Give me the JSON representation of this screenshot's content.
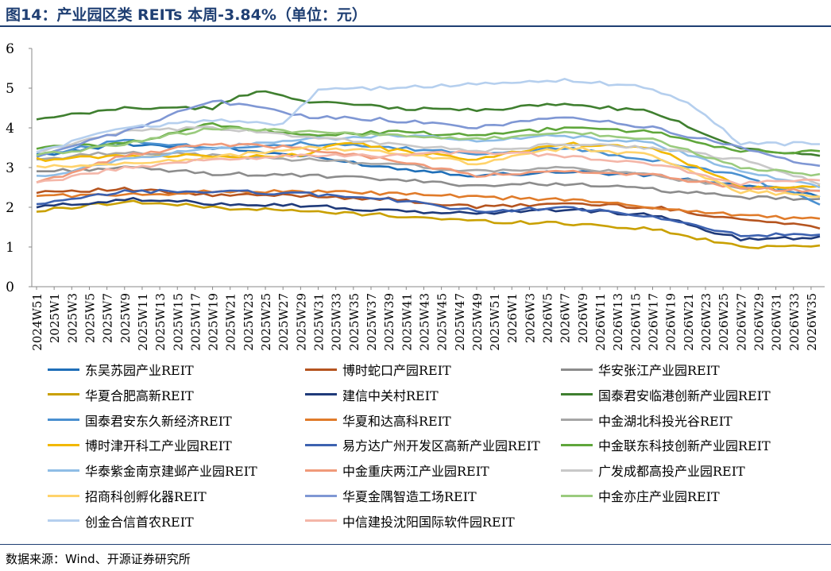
{
  "title": "图14：产业园区类 REITs 本周-3.84%（单位：元）",
  "source": "数据来源：Wind、开源证券研究所",
  "chart_data": {
    "type": "line",
    "ylim": [
      0,
      6
    ],
    "yticks": [
      "0",
      "1",
      "2",
      "3",
      "4",
      "5",
      "6"
    ],
    "x": [
      "2024W51",
      "2024W52",
      "2025W1",
      "2025W2",
      "2025W3",
      "2025W4",
      "2025W5",
      "2025W6",
      "2025W7",
      "2025W8",
      "2025W9",
      "2025W10",
      "2025W11",
      "2025W12",
      "2025W13",
      "2025W14",
      "2025W15",
      "2025W16",
      "2025W17",
      "2025W18",
      "2025W19",
      "2025W20",
      "2025W21",
      "2025W22",
      "2025W23",
      "2025W24",
      "2025W25",
      "2025W26",
      "2025W27",
      "2025W28",
      "2025W29",
      "2025W30",
      "2025W31",
      "2025W32",
      "2025W33",
      "2025W34",
      "2025W35",
      "2025W36",
      "2025W37",
      "2025W38",
      "2025W39",
      "2025W40",
      "2025W41",
      "2025W42",
      "2025W43",
      "2025W44",
      "2025W45",
      "2025W46",
      "2025W47",
      "2025W48",
      "2025W49",
      "2025W50",
      "2025W51",
      "2025W52",
      "2026W1",
      "2026W2",
      "2026W3",
      "2026W4",
      "2026W5",
      "2026W6",
      "2026W7",
      "2026W8",
      "2026W9",
      "2026W10",
      "2026W11",
      "2026W12",
      "2026W13",
      "2026W14",
      "2026W15",
      "2026W16",
      "2026W17",
      "2026W18",
      "2026W19",
      "2026W20",
      "2026W21",
      "2026W22",
      "2026W23",
      "2026W24",
      "2026W25",
      "2026W26",
      "2026W27",
      "2026W28",
      "2026W29",
      "2026W30",
      "2026W31",
      "2026W32",
      "2026W33",
      "2026W34",
      "2026W35",
      "2026W36"
    ],
    "xtick_labels": [
      "2024W51",
      "2025W1",
      "2025W3",
      "2025W5",
      "2025W7",
      "2025W9",
      "2025W11",
      "2025W13",
      "2025W15",
      "2025W17",
      "2025W19",
      "2025W21",
      "2025W23",
      "2025W25",
      "2025W27",
      "2025W29",
      "2025W31",
      "2025W33",
      "2025W35",
      "2025W37",
      "2025W39",
      "2025W41",
      "2025W43",
      "2025W45",
      "2025W47",
      "2025W49",
      "2025W51",
      "2026W1",
      "2026W3",
      "2026W5",
      "2026W7",
      "2026W9",
      "2026W11",
      "2026W13",
      "2026W15",
      "2026W17",
      "2026W19",
      "2026W21",
      "2026W23",
      "2026W25",
      "2026W27",
      "2026W29",
      "2026W31",
      "2026W33",
      "2026W35"
    ],
    "series": [
      {
        "name": "东吴苏园产业REIT",
        "color": "#1f6fb8",
        "anchors": [
          [
            0,
            3.3
          ],
          [
            10,
            3.6
          ],
          [
            20,
            3.5
          ],
          [
            30,
            3.3
          ],
          [
            40,
            3.0
          ],
          [
            50,
            2.8
          ],
          [
            60,
            2.9
          ],
          [
            70,
            2.8
          ],
          [
            80,
            2.55
          ],
          [
            89,
            2.3
          ]
        ]
      },
      {
        "name": "博时蛇口产园REIT",
        "color": "#b5541f",
        "anchors": [
          [
            0,
            2.4
          ],
          [
            10,
            2.45
          ],
          [
            20,
            2.3
          ],
          [
            30,
            2.3
          ],
          [
            40,
            2.2
          ],
          [
            50,
            2.0
          ],
          [
            60,
            2.1
          ],
          [
            70,
            2.0
          ],
          [
            80,
            1.7
          ],
          [
            89,
            1.5
          ]
        ]
      },
      {
        "name": "华安张江产业园REIT",
        "color": "#8c8c8c",
        "anchors": [
          [
            0,
            2.9
          ],
          [
            10,
            3.0
          ],
          [
            20,
            2.85
          ],
          [
            30,
            2.8
          ],
          [
            40,
            2.7
          ],
          [
            50,
            2.55
          ],
          [
            60,
            2.6
          ],
          [
            70,
            2.45
          ],
          [
            80,
            2.25
          ],
          [
            89,
            2.2
          ]
        ]
      },
      {
        "name": "华夏合肥高新REIT",
        "color": "#c9a000",
        "anchors": [
          [
            0,
            1.9
          ],
          [
            10,
            2.15
          ],
          [
            20,
            2.0
          ],
          [
            30,
            1.9
          ],
          [
            40,
            1.8
          ],
          [
            50,
            1.65
          ],
          [
            60,
            1.6
          ],
          [
            70,
            1.45
          ],
          [
            80,
            1.0
          ],
          [
            89,
            1.05
          ]
        ]
      },
      {
        "name": "建信中关村REIT",
        "color": "#1f3a7a",
        "anchors": [
          [
            0,
            2.0
          ],
          [
            10,
            2.2
          ],
          [
            20,
            2.1
          ],
          [
            30,
            2.05
          ],
          [
            40,
            1.9
          ],
          [
            50,
            1.85
          ],
          [
            60,
            1.95
          ],
          [
            70,
            1.8
          ],
          [
            80,
            1.2
          ],
          [
            89,
            1.25
          ]
        ]
      },
      {
        "name": "国泰君安临港创新产业园REIT",
        "color": "#3f7f2f",
        "anchors": [
          [
            0,
            4.2
          ],
          [
            10,
            4.5
          ],
          [
            20,
            4.5
          ],
          [
            25,
            4.95
          ],
          [
            30,
            4.7
          ],
          [
            40,
            4.5
          ],
          [
            50,
            4.45
          ],
          [
            60,
            4.6
          ],
          [
            70,
            4.4
          ],
          [
            80,
            3.5
          ],
          [
            89,
            3.3
          ]
        ]
      },
      {
        "name": "国泰君安东久新经济REIT",
        "color": "#4a90d0",
        "anchors": [
          [
            0,
            3.3
          ],
          [
            10,
            3.7
          ],
          [
            20,
            3.5
          ],
          [
            30,
            3.6
          ],
          [
            40,
            3.5
          ],
          [
            50,
            3.35
          ],
          [
            60,
            3.5
          ],
          [
            70,
            3.2
          ],
          [
            80,
            2.8
          ],
          [
            89,
            2.1
          ]
        ]
      },
      {
        "name": "华夏和达高科REIT",
        "color": "#e07b2a",
        "anchors": [
          [
            0,
            2.3
          ],
          [
            10,
            2.3
          ],
          [
            20,
            2.4
          ],
          [
            30,
            2.4
          ],
          [
            40,
            2.35
          ],
          [
            50,
            2.25
          ],
          [
            60,
            2.2
          ],
          [
            70,
            2.0
          ],
          [
            80,
            1.8
          ],
          [
            89,
            1.7
          ]
        ]
      },
      {
        "name": "中金湖北科投光谷REIT",
        "color": "#a6a6a6",
        "anchors": [
          [
            0,
            3.2
          ],
          [
            10,
            3.4
          ],
          [
            20,
            3.3
          ],
          [
            30,
            3.2
          ],
          [
            40,
            3.1
          ],
          [
            50,
            2.9
          ],
          [
            60,
            3.0
          ],
          [
            70,
            2.8
          ],
          [
            80,
            2.5
          ],
          [
            89,
            2.45
          ]
        ]
      },
      {
        "name": "博时津开科工产业园REIT",
        "color": "#f2b800",
        "anchors": [
          [
            0,
            3.2
          ],
          [
            10,
            3.3
          ],
          [
            20,
            3.3
          ],
          [
            30,
            3.3
          ],
          [
            35,
            3.65
          ],
          [
            40,
            3.45
          ],
          [
            50,
            3.2
          ],
          [
            60,
            3.6
          ],
          [
            70,
            3.5
          ],
          [
            80,
            2.5
          ],
          [
            89,
            2.5
          ]
        ]
      },
      {
        "name": "易方达广州开发区高新产业园REIT",
        "color": "#3d62b0",
        "anchors": [
          [
            0,
            2.05
          ],
          [
            10,
            2.4
          ],
          [
            20,
            2.4
          ],
          [
            30,
            2.35
          ],
          [
            40,
            2.2
          ],
          [
            50,
            1.9
          ],
          [
            60,
            2.0
          ],
          [
            70,
            1.75
          ],
          [
            80,
            1.3
          ],
          [
            89,
            1.3
          ]
        ]
      },
      {
        "name": "中金联东科技创新产业园REIT",
        "color": "#5fa63b",
        "anchors": [
          [
            0,
            3.5
          ],
          [
            10,
            3.6
          ],
          [
            20,
            4.1
          ],
          [
            30,
            3.8
          ],
          [
            40,
            3.9
          ],
          [
            50,
            3.8
          ],
          [
            60,
            4.0
          ],
          [
            70,
            3.9
          ],
          [
            80,
            3.4
          ],
          [
            89,
            3.4
          ]
        ]
      },
      {
        "name": "华泰紫金南京建邺产业园REIT",
        "color": "#8fbde6",
        "anchors": [
          [
            0,
            2.75
          ],
          [
            10,
            3.2
          ],
          [
            20,
            3.5
          ],
          [
            30,
            3.7
          ],
          [
            40,
            3.8
          ],
          [
            50,
            3.7
          ],
          [
            60,
            3.8
          ],
          [
            70,
            3.6
          ],
          [
            80,
            2.9
          ],
          [
            89,
            2.5
          ]
        ]
      },
      {
        "name": "中金重庆两江产业园REIT",
        "color": "#f09a7a",
        "anchors": [
          [
            0,
            2.6
          ],
          [
            10,
            3.3
          ],
          [
            20,
            3.6
          ],
          [
            30,
            3.5
          ],
          [
            40,
            3.2
          ],
          [
            50,
            2.8
          ],
          [
            60,
            2.9
          ],
          [
            70,
            2.8
          ],
          [
            80,
            2.5
          ],
          [
            89,
            2.4
          ]
        ]
      },
      {
        "name": "广发成都高投产业园REIT",
        "color": "#c8c8c8",
        "anchors": [
          [
            0,
            3.4
          ],
          [
            10,
            3.9
          ],
          [
            20,
            4.0
          ],
          [
            30,
            3.8
          ],
          [
            40,
            3.6
          ],
          [
            50,
            3.4
          ],
          [
            60,
            3.6
          ],
          [
            70,
            3.5
          ],
          [
            80,
            3.2
          ],
          [
            89,
            2.6
          ]
        ]
      },
      {
        "name": "招商科创孵化器REIT",
        "color": "#ffd36b",
        "anchors": [
          [
            0,
            3.0
          ],
          [
            10,
            3.1
          ],
          [
            20,
            3.25
          ],
          [
            30,
            3.5
          ],
          [
            40,
            3.4
          ],
          [
            50,
            3.1
          ],
          [
            60,
            3.5
          ],
          [
            70,
            3.3
          ],
          [
            80,
            2.4
          ],
          [
            89,
            2.3
          ]
        ]
      },
      {
        "name": "华夏金隅智造工场REIT",
        "color": "#7f97d4",
        "anchors": [
          [
            0,
            3.3
          ],
          [
            10,
            3.9
          ],
          [
            20,
            4.7
          ],
          [
            30,
            4.3
          ],
          [
            40,
            4.2
          ],
          [
            50,
            4.0
          ],
          [
            60,
            4.3
          ],
          [
            70,
            4.0
          ],
          [
            80,
            3.5
          ],
          [
            89,
            3.0
          ]
        ]
      },
      {
        "name": "中金亦庄产业园REIT",
        "color": "#9acb7e",
        "anchors": [
          [
            0,
            3.3
          ],
          [
            10,
            3.6
          ],
          [
            20,
            4.0
          ],
          [
            30,
            3.9
          ],
          [
            40,
            3.8
          ],
          [
            50,
            3.7
          ],
          [
            60,
            3.9
          ],
          [
            70,
            3.7
          ],
          [
            80,
            3.0
          ],
          [
            89,
            2.8
          ]
        ]
      },
      {
        "name": "创金合信首农REIT",
        "color": "#b5cfee",
        "anchors": [
          [
            0,
            3.4
          ],
          [
            10,
            4.0
          ],
          [
            20,
            4.2
          ],
          [
            28,
            4.1
          ],
          [
            32,
            4.95
          ],
          [
            40,
            5.0
          ],
          [
            50,
            5.1
          ],
          [
            60,
            5.2
          ],
          [
            70,
            5.0
          ],
          [
            75,
            4.5
          ],
          [
            80,
            3.6
          ],
          [
            89,
            3.6
          ]
        ]
      },
      {
        "name": "中信建投沈阳国际软件园REIT",
        "color": "#f4b6a8",
        "anchors": [
          [
            0,
            2.6
          ],
          [
            10,
            3.0
          ],
          [
            20,
            3.2
          ],
          [
            30,
            3.3
          ],
          [
            40,
            3.3
          ],
          [
            50,
            3.4
          ],
          [
            60,
            3.3
          ],
          [
            70,
            3.1
          ],
          [
            80,
            2.6
          ],
          [
            89,
            2.7
          ]
        ]
      }
    ]
  }
}
